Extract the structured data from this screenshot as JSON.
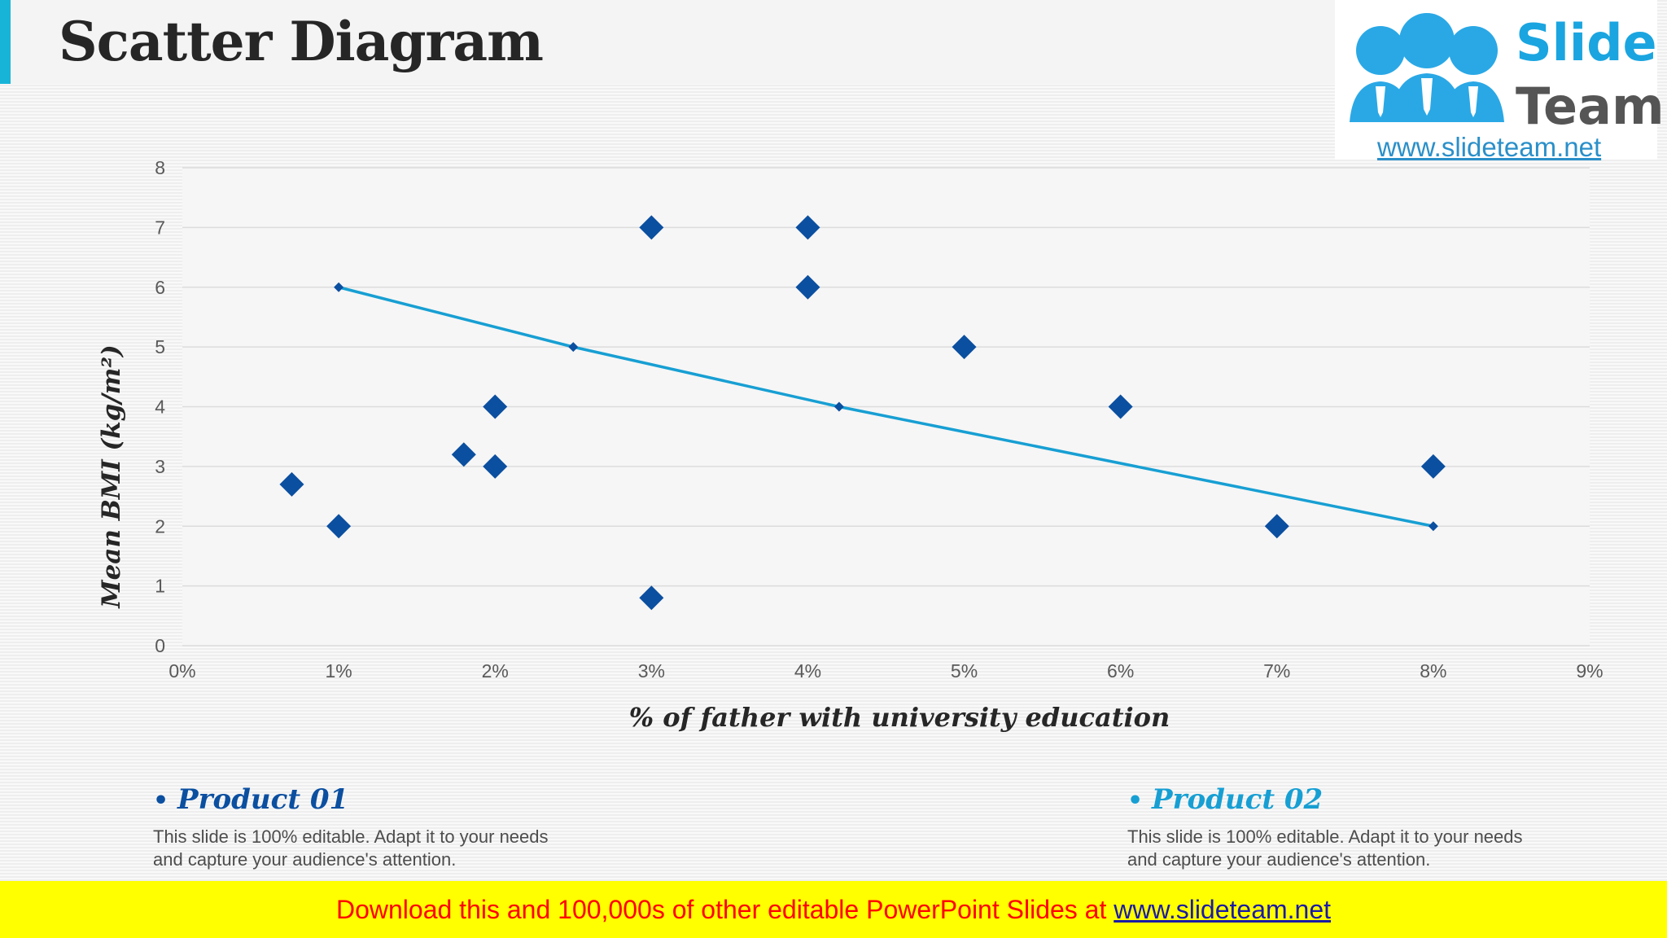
{
  "slide": {
    "title": "Scatter Diagram"
  },
  "logo": {
    "line1": "Slide",
    "line2": "Team",
    "url": "www.slideteam.net",
    "colors": {
      "slide_text": "#1aa5e0",
      "team_text": "#555555",
      "figures": "#2aa8e6"
    }
  },
  "chart_data": {
    "type": "scatter",
    "xlabel": "% of father with university education",
    "ylabel": "Mean BMI (kg/m²)",
    "xlim": [
      0,
      9
    ],
    "ylim": [
      0,
      8
    ],
    "x_unit": "%",
    "x_ticks": [
      0,
      1,
      2,
      3,
      4,
      5,
      6,
      7,
      8,
      9
    ],
    "y_ticks": [
      0,
      1,
      2,
      3,
      4,
      5,
      6,
      7,
      8
    ],
    "grid": true,
    "legend": "none",
    "series": [
      {
        "name": "Product 01",
        "color": "#0b4fa0",
        "points": [
          {
            "x": 0.7,
            "y": 2.7
          },
          {
            "x": 1.0,
            "y": 2.0
          },
          {
            "x": 1.8,
            "y": 3.2
          },
          {
            "x": 2.0,
            "y": 4.0
          },
          {
            "x": 2.0,
            "y": 3.0
          },
          {
            "x": 3.0,
            "y": 7.0
          },
          {
            "x": 3.0,
            "y": 0.8
          },
          {
            "x": 4.0,
            "y": 7.0
          },
          {
            "x": 4.0,
            "y": 6.0
          },
          {
            "x": 5.0,
            "y": 5.0
          },
          {
            "x": 6.0,
            "y": 4.0
          },
          {
            "x": 7.0,
            "y": 2.0
          },
          {
            "x": 8.0,
            "y": 3.0
          }
        ]
      },
      {
        "name": "Product 02",
        "color": "#179fd3",
        "style": "line",
        "points": [
          {
            "x": 1.0,
            "y": 6.0
          },
          {
            "x": 2.5,
            "y": 5.0
          },
          {
            "x": 4.2,
            "y": 4.0
          },
          {
            "x": 8.0,
            "y": 2.0
          }
        ]
      }
    ]
  },
  "legend_items": [
    {
      "title": "Product 01",
      "color": "#0b4fa0",
      "description": "This slide is 100% editable. Adapt it to your needs and capture your audience's attention."
    },
    {
      "title": "Product 02",
      "color": "#179fd3",
      "description": "This slide is 100% editable. Adapt it to your needs and capture your audience's attention."
    }
  ],
  "banner": {
    "text": "Download this and 100,000s of other editable PowerPoint Slides at ",
    "link": "www.slideteam.net"
  }
}
